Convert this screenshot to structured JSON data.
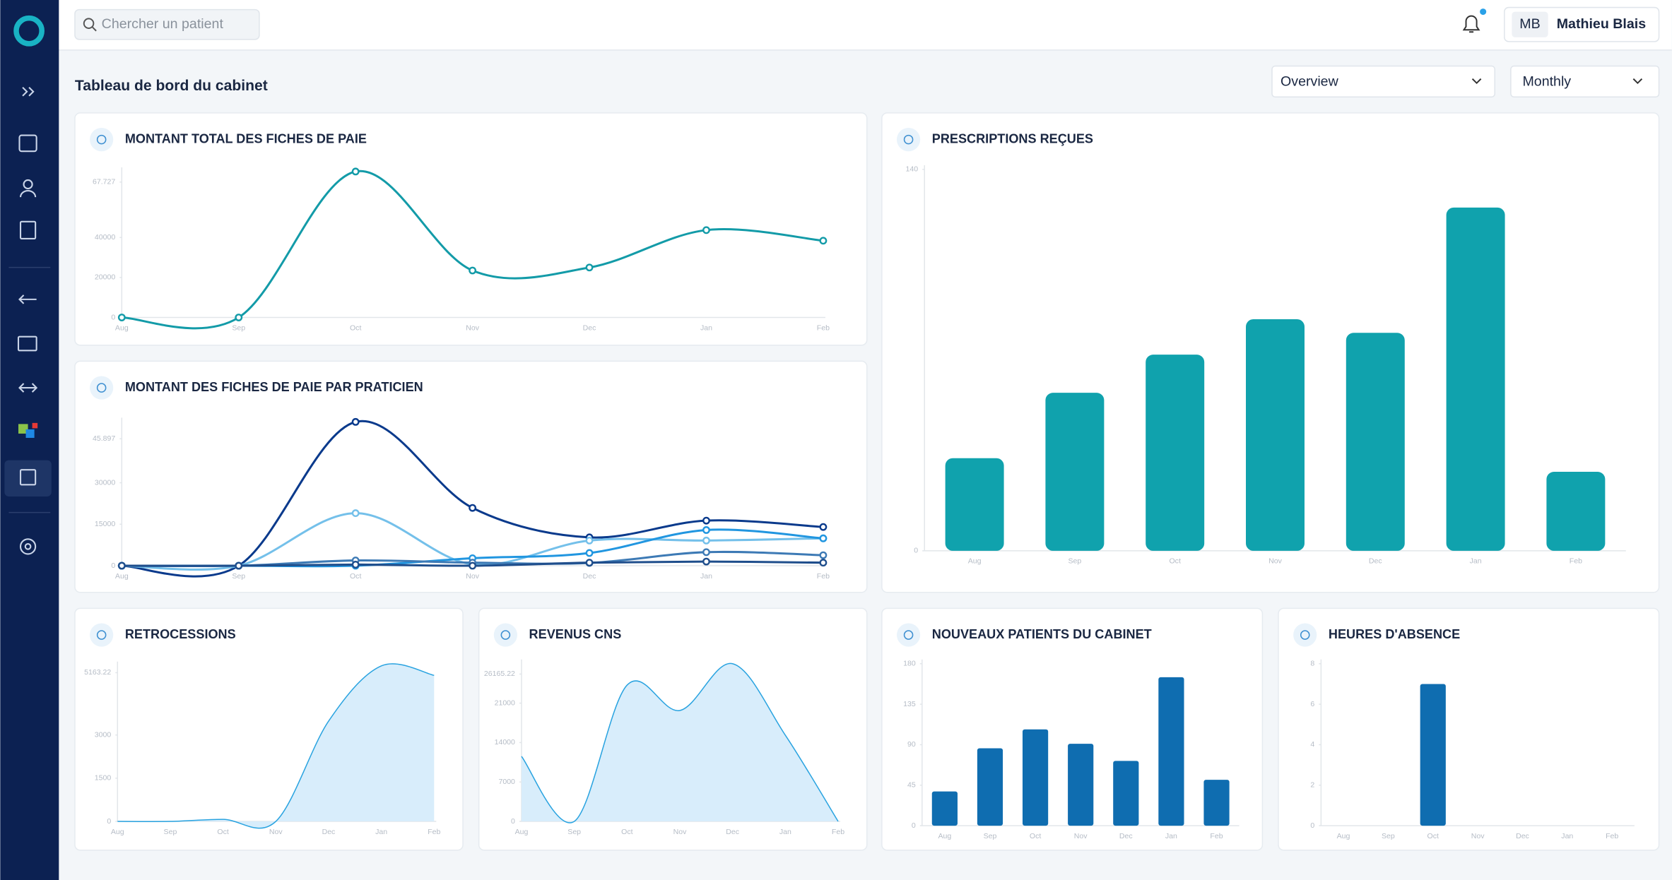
{
  "search_placeholder": "Chercher un patient",
  "user": {
    "initials": "MB",
    "name": "Mathieu Blais"
  },
  "page_title": "Tableau de bord du cabinet",
  "filters": [
    "Overview",
    "Monthly"
  ],
  "chart_data": [
    {
      "type": "line",
      "title": "MONTANT TOTAL DES FICHES DE PAIE",
      "categories": [
        "Aug",
        "Sep",
        "Oct",
        "Nov",
        "Dec",
        "Jan",
        "Feb"
      ],
      "values": [
        0,
        0,
        73000,
        23500,
        25000,
        43700,
        38400
      ],
      "color": "#139ba8",
      "ylim": [
        0,
        73000
      ],
      "yticks": [
        0,
        20000,
        40000,
        {
          "value": 67727,
          "label": "67.727"
        }
      ]
    },
    {
      "type": "line",
      "title": "MONTANT DES FICHES DE PAIE PAR PRATICIEN",
      "categories": [
        "Aug",
        "Sep",
        "Oct",
        "Nov",
        "Dec",
        "Jan",
        "Feb"
      ],
      "series": [
        {
          "color": "#0a3a8c",
          "values": [
            0,
            0,
            52000,
            20900,
            10250,
            16300,
            14000
          ]
        },
        {
          "color": "#74c0ea",
          "values": [
            0,
            0,
            19000,
            500,
            9100,
            9100,
            9900
          ]
        },
        {
          "color": "#2196e0",
          "values": [
            0,
            0,
            0,
            2700,
            4600,
            12900,
            9900
          ]
        },
        {
          "color": "#3d7ab5",
          "values": [
            0,
            0,
            1900,
            1100,
            1000,
            4900,
            3800
          ]
        },
        {
          "color": "#1f4e8c",
          "values": [
            0,
            0,
            400,
            0,
            1100,
            1500,
            1100
          ]
        }
      ],
      "ylim": [
        0,
        52000
      ],
      "yticks": [
        0,
        15000,
        30000,
        {
          "value": 45897,
          "label": "45.897"
        }
      ]
    },
    {
      "type": "bar",
      "title": "PRESCRIPTIONS REÇUES",
      "categories": [
        "Aug",
        "Sep",
        "Oct",
        "Nov",
        "Dec",
        "Jan",
        "Feb"
      ],
      "values": [
        34,
        58,
        72,
        85,
        80,
        126,
        29
      ],
      "color": "#10a2ad",
      "ylim": [
        0,
        140
      ],
      "yticks": [
        0,
        140
      ]
    },
    {
      "type": "area",
      "title": "RETROCESSIONS",
      "categories": [
        "Aug",
        "Sep",
        "Oct",
        "Nov",
        "Dec",
        "Jan",
        "Feb"
      ],
      "values": [
        0,
        0,
        70,
        0,
        3480,
        5400,
        5070
      ],
      "color": "#29a3e0",
      "ylim": [
        0,
        5400
      ],
      "yticks": [
        0,
        1500,
        3000,
        5163.22
      ]
    },
    {
      "type": "area",
      "title": "REVENUS CNS",
      "categories": [
        "Aug",
        "Sep",
        "Oct",
        "Nov",
        "Dec",
        "Jan",
        "Feb"
      ],
      "values": [
        11540,
        0,
        24200,
        19700,
        28000,
        15300,
        0
      ],
      "color": "#29a3e0",
      "ylim": [
        0,
        28000
      ],
      "yticks": [
        0,
        7000,
        14000,
        21000,
        26165.22
      ]
    },
    {
      "type": "bar",
      "title": "NOUVEAUX PATIENTS DU CABINET",
      "categories": [
        "Aug",
        "Sep",
        "Oct",
        "Nov",
        "Dec",
        "Jan",
        "Feb"
      ],
      "values": [
        38,
        86,
        107,
        91,
        72,
        165,
        51
      ],
      "color": "#0f6db0",
      "ylim": [
        0,
        180
      ],
      "yticks": [
        0,
        45,
        90,
        135,
        180
      ]
    },
    {
      "type": "bar",
      "title": "HEURES D'ABSENCE",
      "categories": [
        "Aug",
        "Sep",
        "Oct",
        "Nov",
        "Dec",
        "Jan",
        "Feb"
      ],
      "values": [
        0,
        0,
        7,
        0,
        0,
        0,
        0
      ],
      "color": "#0f6db0",
      "ylim": [
        0,
        8
      ],
      "yticks": [
        0,
        2,
        4,
        6,
        8
      ]
    }
  ]
}
